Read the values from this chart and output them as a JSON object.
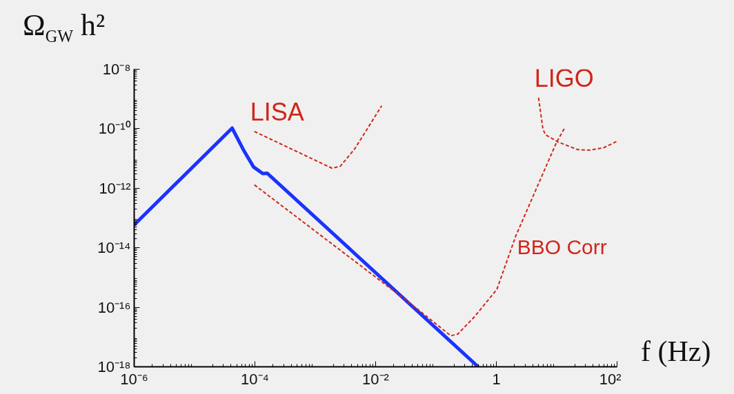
{
  "chart_data": {
    "type": "line",
    "xlabel": "f (Hz)",
    "ylabel": "Ω$_{GW}$ h²",
    "log": "xy",
    "grid": false,
    "xlim": [
      1e-06,
      100
    ],
    "ylim": [
      1e-18,
      1e-08
    ],
    "xticks": [
      {
        "value": 1e-06,
        "label": "10⁻⁶"
      },
      {
        "value": 0.0001,
        "label": "10⁻⁴"
      },
      {
        "value": 0.01,
        "label": "10⁻²"
      },
      1,
      {
        "value": 100,
        "label": "10²"
      }
    ],
    "yticks": [
      {
        "value": 1e-18,
        "label": "10⁻¹⁸"
      },
      {
        "value": 1e-16,
        "label": "10⁻¹⁶"
      },
      {
        "value": 1e-14,
        "label": "10⁻¹⁴"
      },
      {
        "value": 1e-12,
        "label": "10⁻¹²"
      },
      {
        "value": 1e-10,
        "label": "10⁻¹⁰"
      },
      {
        "value": 1e-08,
        "label": "10⁻⁸"
      }
    ],
    "series": [
      {
        "color": "#1a33ff",
        "line_style": "solid",
        "x": [
          1e-06,
          4.2e-05,
          6.6e-05,
          9.5e-05,
          0.000135,
          0.00016,
          0.5
        ],
        "values": [
          5.9e-14,
          1.05e-10,
          1.8e-11,
          5.2e-12,
          3.1e-12,
          3.2e-12,
          1e-18
        ]
      },
      {
        "name": "LISA",
        "color": "#d0261a",
        "line_style": "dashed",
        "x": [
          9.8e-05,
          0.0019,
          0.0026,
          0.0045,
          0.0126
        ],
        "values": [
          8.1e-11,
          4.7e-12,
          5.5e-12,
          2.1e-11,
          5.9e-10
        ]
      },
      {
        "name": "LIGO",
        "color": "#d0261a",
        "line_style": "dashed",
        "x": [
          5.0,
          5.9,
          6.5,
          10.5,
          22,
          35,
          60,
          100
        ],
        "values": [
          1.1e-09,
          1e-10,
          6.3e-11,
          3.6e-11,
          2e-11,
          1.9e-11,
          2.3e-11,
          3.8e-11
        ]
      },
      {
        "name": "BBO Corr",
        "color": "#d0261a",
        "line_style": "dashed",
        "x": [
          9.8e-05,
          0.044,
          0.176,
          0.23,
          0.43,
          1.02,
          2.1,
          10,
          13.5
        ],
        "values": [
          1.3e-12,
          1.05e-16,
          1.1e-17,
          1.26e-17,
          4.7e-17,
          4e-16,
          2.5e-14,
          3.6e-11,
          1.05e-10
        ]
      }
    ]
  }
}
